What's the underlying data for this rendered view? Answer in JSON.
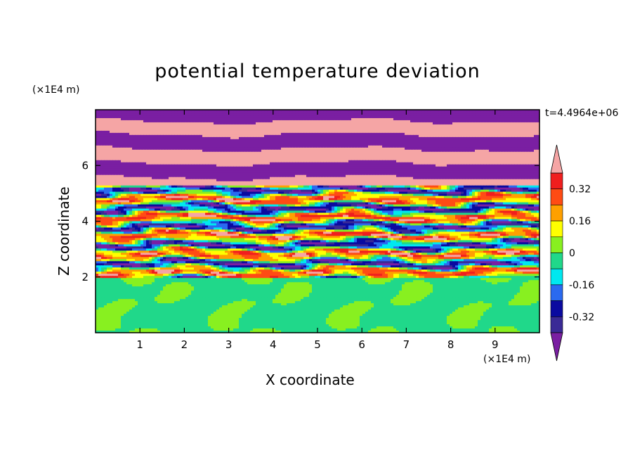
{
  "chart_data": {
    "type": "heatmap",
    "title": "potential temperature deviation",
    "xlabel": "X coordinate",
    "ylabel": "Z coordinate",
    "x_unit": "(×1E4 m)",
    "y_unit": "(×1E4 m)",
    "time_label": "t=4.4964e+06",
    "xlim": [
      0,
      10
    ],
    "ylim": [
      0,
      8
    ],
    "x_ticks": [
      "1",
      "2",
      "3",
      "4",
      "5",
      "6",
      "7",
      "8",
      "9"
    ],
    "x_tick_values": [
      1,
      2,
      3,
      4,
      5,
      6,
      7,
      8,
      9
    ],
    "y_ticks": [
      "2",
      "4",
      "6"
    ],
    "y_tick_values": [
      2,
      4,
      6
    ],
    "colorbar": {
      "tick_labels": [
        "0.32",
        "0.16",
        "0",
        "-0.16",
        "-0.32"
      ],
      "tick_values": [
        0.32,
        0.16,
        0,
        -0.16,
        -0.32
      ],
      "levels": [
        -0.4,
        -0.32,
        -0.24,
        -0.16,
        -0.08,
        0,
        0.08,
        0.16,
        0.24,
        0.32,
        0.4
      ],
      "colors": [
        "#7a1fa2",
        "#3a2a96",
        "#0a0aa0",
        "#2a6af0",
        "#00e8f0",
        "#20d88a",
        "#88f020",
        "#ffff00",
        "#ffa000",
        "#ff4b14",
        "#f01e1e",
        "#f5a5a5"
      ]
    },
    "regions": [
      {
        "z_range": [
          0,
          2
        ],
        "description_values": [
          "0",
          "0.08"
        ]
      },
      {
        "z_range": [
          2,
          5.3
        ],
        "description_values": [
          "-0.4",
          "0.4"
        ]
      },
      {
        "z_range": [
          5.3,
          8
        ],
        "description_values": [
          "-0.4",
          "0.4"
        ]
      }
    ]
  }
}
